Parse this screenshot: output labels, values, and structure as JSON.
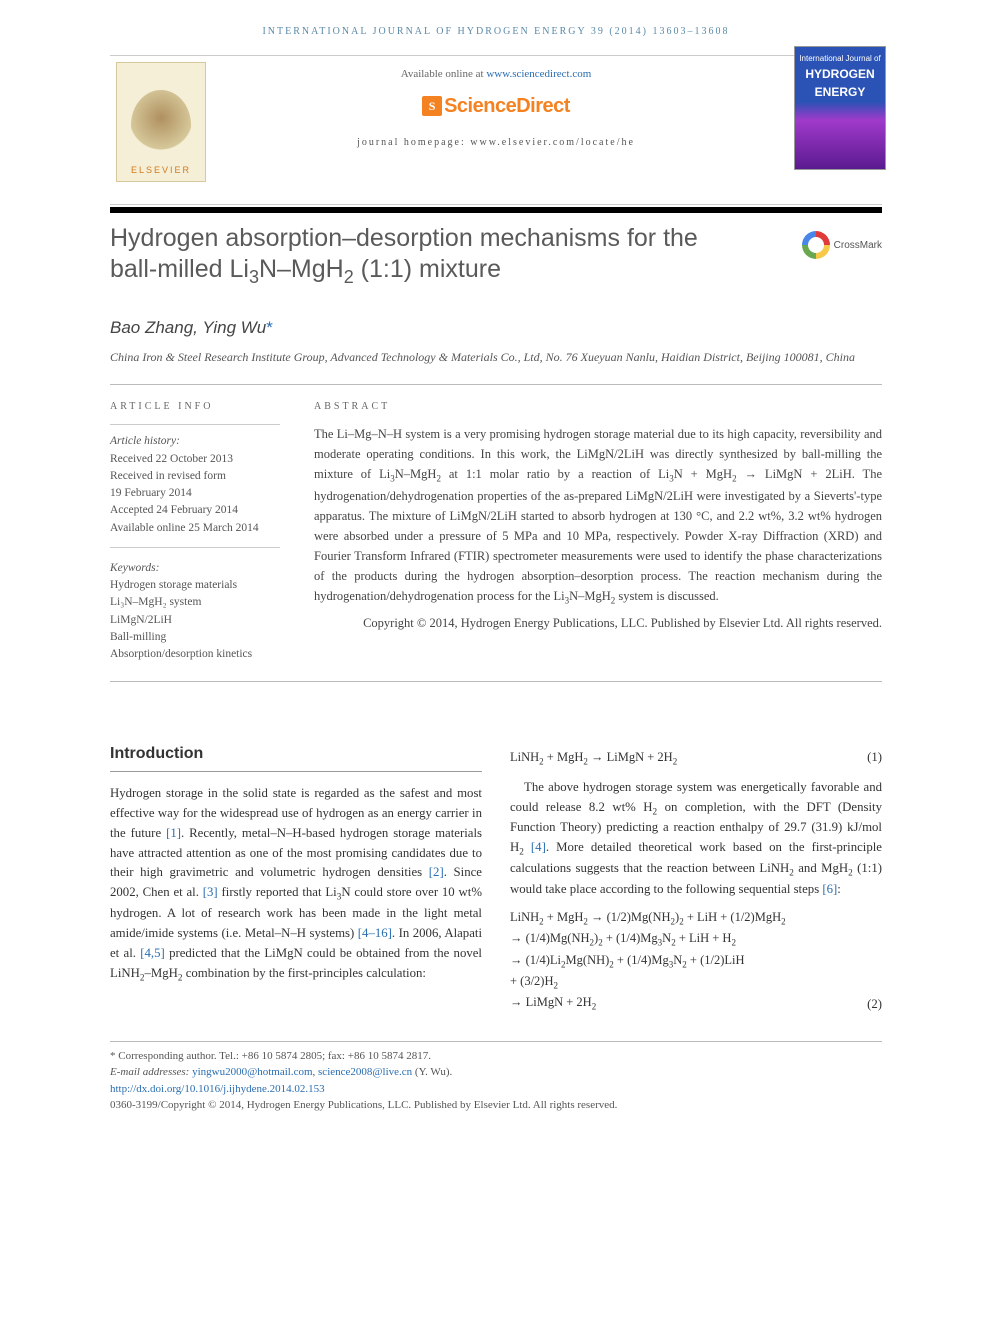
{
  "runningHead": "INTERNATIONAL JOURNAL OF HYDROGEN ENERGY 39 (2014) 13603–13608",
  "availablePrefix": "Available online at ",
  "availableLink": "www.sciencedirect.com",
  "sdBrand": "ScienceDirect",
  "journalHomepage": "journal homepage: www.elsevier.com/locate/he",
  "elsevier": "ELSEVIER",
  "coverTop": "International Journal of",
  "coverMain1": "HYDROGEN",
  "coverMain2": "ENERGY",
  "crossmark": "CrossMark",
  "title_html": "Hydrogen absorption–desorption mechanisms for the ball-milled Li<span class='sub'>3</span>N–MgH<span class='sub'>2</span> (1:1) mixture",
  "authors_html": "Bao Zhang, Ying Wu<span class='star'>*</span>",
  "affiliation": "China Iron & Steel Research Institute Group, Advanced Technology & Materials Co., Ltd, No. 76 Xueyuan Nanlu, Haidian District, Beijing 100081, China",
  "articleInfoHead": "ARTICLE INFO",
  "abstractHead": "ABSTRACT",
  "history": {
    "label": "Article history:",
    "received": "Received 22 October 2013",
    "revised1": "Received in revised form",
    "revised2": "19 February 2014",
    "accepted": "Accepted 24 February 2014",
    "online": "Available online 25 March 2014"
  },
  "keywordsHead": "Keywords:",
  "keywords": [
    "Hydrogen storage materials",
    "Li₃N–MgH₂ system",
    "LiMgN/2LiH",
    "Ball-milling",
    "Absorption/desorption kinetics"
  ],
  "abstract_html": "The Li–Mg–N–H system is a very promising hydrogen storage material due to its high capacity, reversibility and moderate operating conditions. In this work, the LiMgN/2LiH was directly synthesized by ball-milling the mixture of Li<span class='sub'>3</span>N–MgH<span class='sub'>2</span> at 1:1 molar ratio by a reaction of Li<span class='sub'>3</span>N + MgH<span class='sub'>2</span> → LiMgN + 2LiH. The hydrogenation/dehydrogenation properties of the as-prepared LiMgN/2LiH were investigated by a Sieverts'-type apparatus. The mixture of LiMgN/2LiH started to absorb hydrogen at 130 °C, and 2.2 wt%, 3.2 wt% hydrogen were absorbed under a pressure of 5 MPa and 10 MPa, respectively. Powder X-ray Diffraction (XRD) and Fourier Transform Infrared (FTIR) spectrometer measurements were used to identify the phase characterizations of the products during the hydrogen absorption–desorption process. The reaction mechanism during the hydrogenation/dehydrogenation process for the Li<span class='sub'>3</span>N–MgH<span class='sub'>2</span> system is discussed.",
  "abstractCopyright": "Copyright © 2014, Hydrogen Energy Publications, LLC. Published by Elsevier Ltd. All rights reserved.",
  "introHead": "Introduction",
  "introPara_html": "Hydrogen storage in the solid state is regarded as the safest and most effective way for the widespread use of hydrogen as an energy carrier in the future <span class='ref'>[1]</span>. Recently, metal–N–H-based hydrogen storage materials have attracted attention as one of the most promising candidates due to their high gravimetric and volumetric hydrogen densities <span class='ref'>[2]</span>. Since 2002, Chen et al. <span class='ref'>[3]</span> firstly reported that Li<span class='sub'>3</span>N could store over 10 wt% hydrogen. A lot of research work has been made in the light metal amide/imide systems (i.e. Metal–N–H systems) <span class='ref'>[4–16]</span>. In 2006, Alapati et al. <span class='ref'>[4,5]</span> predicted that the LiMgN could be obtained from the novel LiNH<span class='sub'>2</span>–MgH<span class='sub'>2</span> combination by the first-principles calculation:",
  "eq1_html": "LiNH<span class='sub'>2</span> + MgH<span class='sub'>2</span> → LiMgN + 2H<span class='sub'>2</span>",
  "eq1_num": "(1)",
  "rightPara_html": "The above hydrogen storage system was energetically favorable and could release 8.2 wt% H<span class='sub'>2</span> on completion, with the DFT (Density Function Theory) predicting a reaction enthalpy of 29.7 (31.9) kJ/mol H<span class='sub'>2</span> <span class='ref'>[4]</span>. More detailed theoretical work based on the first-principle calculations suggests that the reaction between LiNH<span class='sub'>2</span> and MgH<span class='sub'>2</span> (1:1) would take place according to the following sequential steps <span class='ref'>[6]</span>:",
  "eq2_lines_html": [
    "LiNH<span class='sub'>2</span> + MgH<span class='sub'>2</span> → (1/2)Mg(NH<span class='sub'>2</span>)<span class='sub'>2</span> + LiH + (1/2)MgH<span class='sub'>2</span>",
    "→ (1/4)Mg(NH<span class='sub'>2</span>)<span class='sub'>2</span> + (1/4)Mg<span class='sub'>3</span>N<span class='sub'>2</span> + LiH + H<span class='sub'>2</span>",
    "→ (1/4)Li<span class='sub'>2</span>Mg(NH)<span class='sub'>2</span> + (1/4)Mg<span class='sub'>3</span>N<span class='sub'>2</span> + (1/2)LiH",
    "+ (3/2)H<span class='sub'>2</span>",
    "→ LiMgN + 2H<span class='sub'>2</span>"
  ],
  "eq2_num": "(2)",
  "footnote": {
    "corr": "* Corresponding author. Tel.: +86 10 5874 2805; fax: +86 10 5874 2817.",
    "emailsLabel": "E-mail addresses: ",
    "email1": "yingwu2000@hotmail.com",
    "email2": "science2008@live.cn",
    "emailTail": " (Y. Wu).",
    "doi": "http://dx.doi.org/10.1016/j.ijhydene.2014.02.153",
    "issn": "0360-3199/Copyright © 2014, Hydrogen Energy Publications, LLC. Published by Elsevier Ltd. All rights reserved."
  },
  "colors": {
    "link": "#2a6db0",
    "orange": "#f58220",
    "headText": "#5a8aa8"
  }
}
